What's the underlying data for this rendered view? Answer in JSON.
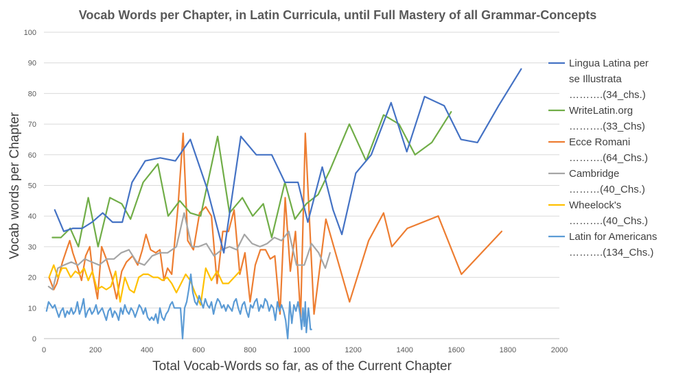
{
  "chart_data": {
    "type": "line",
    "title": "Vocab Words per Chapter, in Latin Curricula, until Full Mastery of all Grammar-Concepts",
    "xlabel": "Total Vocab-Words so far, as of the Current Chapter",
    "ylabel": "Vocab words per Chapter",
    "xlim": [
      0,
      2000
    ],
    "ylim": [
      0,
      100
    ],
    "xticks": [
      0,
      200,
      400,
      600,
      800,
      1000,
      1200,
      1400,
      1600,
      1800,
      2000
    ],
    "yticks": [
      0,
      10,
      20,
      30,
      40,
      50,
      60,
      70,
      80,
      90,
      100
    ],
    "grid": "horizontal",
    "legend_position": "right",
    "series": [
      {
        "name": "Lingua Latina per se Illustrata",
        "legend_lines": [
          "Lingua Latina per",
          "se Illustrata",
          "……….(34_chs.)"
        ],
        "color": "#4472c4",
        "x": [
          42,
          77,
          113,
          149,
          187,
          228,
          266,
          304,
          342,
          393,
          451,
          510,
          568,
          633,
          698,
          764,
          824,
          884,
          935,
          986,
          1024,
          1080,
          1122,
          1156,
          1210,
          1270,
          1347,
          1408,
          1477,
          1553,
          1618,
          1682,
          1764,
          1852
        ],
        "y": [
          42,
          35,
          36,
          36,
          38,
          41,
          38,
          38,
          51,
          58,
          59,
          58,
          65,
          49,
          28,
          66,
          60,
          60,
          51,
          51,
          38,
          56,
          42,
          34,
          54,
          60,
          77,
          61,
          79,
          76,
          65,
          64,
          76,
          88
        ]
      },
      {
        "name": "WriteLatin.org",
        "legend_lines": [
          "WriteLatin.org",
          "……….(33_Chs)"
        ],
        "color": "#70ad47",
        "x": [
          33,
          66,
          102,
          134,
          172,
          210,
          256,
          302,
          336,
          385,
          442,
          482,
          527,
          568,
          608,
          674,
          720,
          770,
          810,
          851,
          884,
          935,
          974,
          1018,
          1064,
          1110,
          1185,
          1250,
          1318,
          1378,
          1440,
          1505,
          1580
        ],
        "y": [
          33,
          33,
          36,
          30,
          46,
          30,
          46,
          44,
          39,
          51,
          57,
          40,
          45,
          41,
          40,
          66,
          41,
          46,
          40,
          44,
          33,
          51,
          39,
          44,
          47,
          55,
          70,
          58,
          73,
          70,
          60,
          64,
          74
        ]
      },
      {
        "name": "Ecce Romani",
        "legend_lines": [
          "Ecce Romani",
          "……….(64_Chs.)"
        ],
        "color": "#ed7d31",
        "x": [
          20,
          38,
          50,
          72,
          88,
          100,
          112,
          128,
          146,
          162,
          178,
          190,
          208,
          224,
          242,
          264,
          282,
          302,
          320,
          344,
          364,
          382,
          396,
          414,
          434,
          450,
          466,
          480,
          496,
          520,
          540,
          558,
          580,
          604,
          628,
          650,
          672,
          694,
          716,
          738,
          760,
          780,
          800,
          820,
          840,
          860,
          878,
          896,
          916,
          936,
          956,
          976,
          996,
          1014,
          1048,
          1094,
          1186,
          1260,
          1318,
          1350,
          1410,
          1530,
          1620,
          1776
        ],
        "y": [
          20,
          16,
          18,
          25,
          29,
          32,
          28,
          24,
          19,
          27,
          30,
          21,
          13,
          30,
          26,
          20,
          13,
          22,
          25,
          27,
          24,
          29,
          34,
          29,
          28,
          29,
          19,
          23,
          21,
          43,
          67,
          32,
          29,
          41,
          43,
          40,
          18,
          35,
          35,
          42,
          21,
          28,
          12,
          24,
          29,
          29,
          26,
          27,
          8,
          46,
          22,
          35,
          7,
          67,
          8,
          39,
          12,
          32,
          41,
          30,
          36,
          40,
          21,
          35
        ]
      },
      {
        "name": "Cambridge",
        "legend_lines": [
          "Cambridge",
          "………(40_Chs.)"
        ],
        "color": "#a5a5a5",
        "x": [
          18,
          34,
          54,
          78,
          106,
          132,
          158,
          186,
          214,
          244,
          272,
          300,
          330,
          360,
          390,
          420,
          450,
          480,
          514,
          544,
          574,
          600,
          630,
          660,
          690,
          720,
          748,
          778,
          808,
          838,
          866,
          894,
          922,
          950,
          980,
          1010,
          1038,
          1066,
          1092,
          1110
        ],
        "y": [
          17,
          16,
          23,
          24,
          25,
          24,
          26,
          25,
          24,
          26,
          26,
          28,
          29,
          25,
          24,
          27,
          28,
          28,
          30,
          41,
          30,
          30,
          31,
          27,
          29,
          30,
          29,
          34,
          31,
          30,
          31,
          33,
          32,
          35,
          24,
          24,
          31,
          28,
          23,
          28
        ]
      },
      {
        "name": "Wheelock's",
        "legend_lines": [
          "Wheelock's",
          "……….(40_Chs.)"
        ],
        "color": "#ffc000",
        "x": [
          20,
          38,
          54,
          70,
          86,
          104,
          122,
          138,
          156,
          172,
          188,
          206,
          224,
          242,
          260,
          278,
          296,
          314,
          332,
          350,
          368,
          386,
          404,
          424,
          442,
          460,
          478,
          496,
          514,
          532,
          550,
          568,
          586,
          608,
          628,
          650,
          672,
          694,
          716,
          760
        ],
        "y": [
          20,
          24,
          20,
          23,
          23,
          20,
          22,
          21,
          23,
          19,
          22,
          16,
          17,
          16,
          17,
          22,
          12,
          20,
          16,
          15,
          20,
          21,
          21,
          20,
          20,
          19,
          20,
          18,
          15,
          18,
          21,
          19,
          15,
          11,
          23,
          19,
          22,
          18,
          18,
          22
        ]
      },
      {
        "name": "Latin for Americans",
        "legend_lines": [
          "Latin for Americans",
          "……….(134_Chs.)"
        ],
        "color": "#5b9bd5",
        "x": [
          10,
          18,
          26,
          34,
          42,
          50,
          58,
          66,
          74,
          82,
          90,
          98,
          106,
          114,
          122,
          130,
          138,
          146,
          154,
          162,
          170,
          178,
          186,
          194,
          202,
          210,
          218,
          226,
          234,
          242,
          250,
          258,
          266,
          274,
          282,
          290,
          298,
          306,
          314,
          322,
          330,
          338,
          346,
          354,
          362,
          370,
          378,
          386,
          394,
          402,
          410,
          418,
          426,
          434,
          442,
          450,
          458,
          466,
          474,
          482,
          490,
          498,
          506,
          514,
          522,
          530,
          538,
          546,
          554,
          562,
          570,
          578,
          586,
          594,
          602,
          610,
          618,
          626,
          634,
          642,
          650,
          658,
          666,
          674,
          682,
          690,
          698,
          706,
          714,
          722,
          730,
          738,
          746,
          754,
          762,
          770,
          778,
          786,
          794,
          802,
          810,
          818,
          826,
          834,
          842,
          850,
          858,
          866,
          874,
          882,
          890,
          898,
          906,
          914,
          922,
          930,
          938,
          946,
          954,
          962,
          970,
          978,
          986,
          994,
          1000,
          1005,
          1010,
          1014,
          1018,
          1022,
          1026,
          1030,
          1034,
          1038
        ],
        "y": [
          9,
          12,
          11,
          10,
          11,
          9,
          7,
          9,
          10,
          7,
          9,
          8,
          10,
          8,
          9,
          12,
          8,
          10,
          13,
          7,
          9,
          10,
          8,
          9,
          11,
          8,
          9,
          10,
          8,
          6,
          9,
          10,
          7,
          9,
          8,
          6,
          10,
          8,
          11,
          9,
          8,
          10,
          9,
          7,
          9,
          11,
          10,
          8,
          10,
          7,
          6,
          7,
          6,
          8,
          5,
          10,
          7,
          6,
          8,
          9,
          11,
          12,
          10,
          10,
          10,
          10,
          0,
          10,
          12,
          16,
          21,
          15,
          12,
          11,
          14,
          12,
          10,
          13,
          11,
          10,
          12,
          8,
          11,
          13,
          12,
          10,
          11,
          9,
          11,
          10,
          9,
          12,
          13,
          10,
          8,
          11,
          12,
          9,
          7,
          11,
          10,
          12,
          13,
          9,
          11,
          10,
          13,
          12,
          9,
          11,
          10,
          6,
          12,
          9,
          11,
          9,
          6,
          0,
          12,
          5,
          11,
          9,
          12,
          8,
          3,
          10,
          4,
          12,
          2,
          6,
          10,
          7,
          3,
          3
        ]
      }
    ]
  }
}
